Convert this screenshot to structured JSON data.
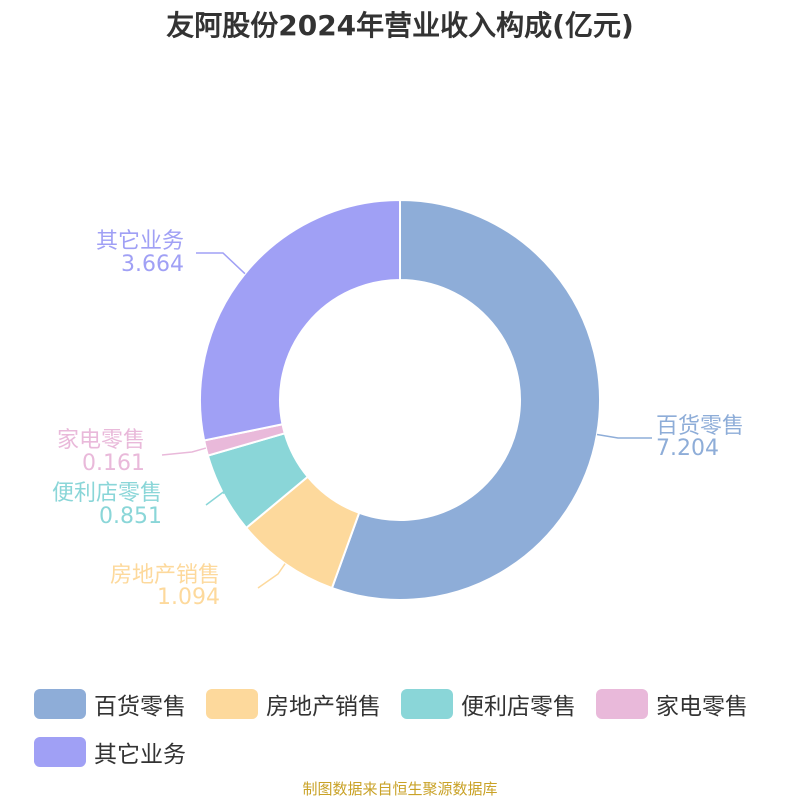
{
  "chart_data": {
    "type": "pie",
    "title": "友阿股份2024年营业收入构成(亿元)",
    "categories": [
      "百货零售",
      "房地产销售",
      "便利店零售",
      "家电零售",
      "其它业务"
    ],
    "values": [
      7.204,
      1.094,
      0.851,
      0.161,
      3.664
    ],
    "value_labels": [
      "7.204",
      "1.094",
      "0.851",
      "0.161",
      "3.664"
    ],
    "colors": [
      "#8eadd8",
      "#fdd99c",
      "#8ad6d8",
      "#e9b9da",
      "#a0a0f5"
    ],
    "donut": true,
    "legend_position": "bottom"
  },
  "source": "制图数据来自恒生聚源数据库"
}
